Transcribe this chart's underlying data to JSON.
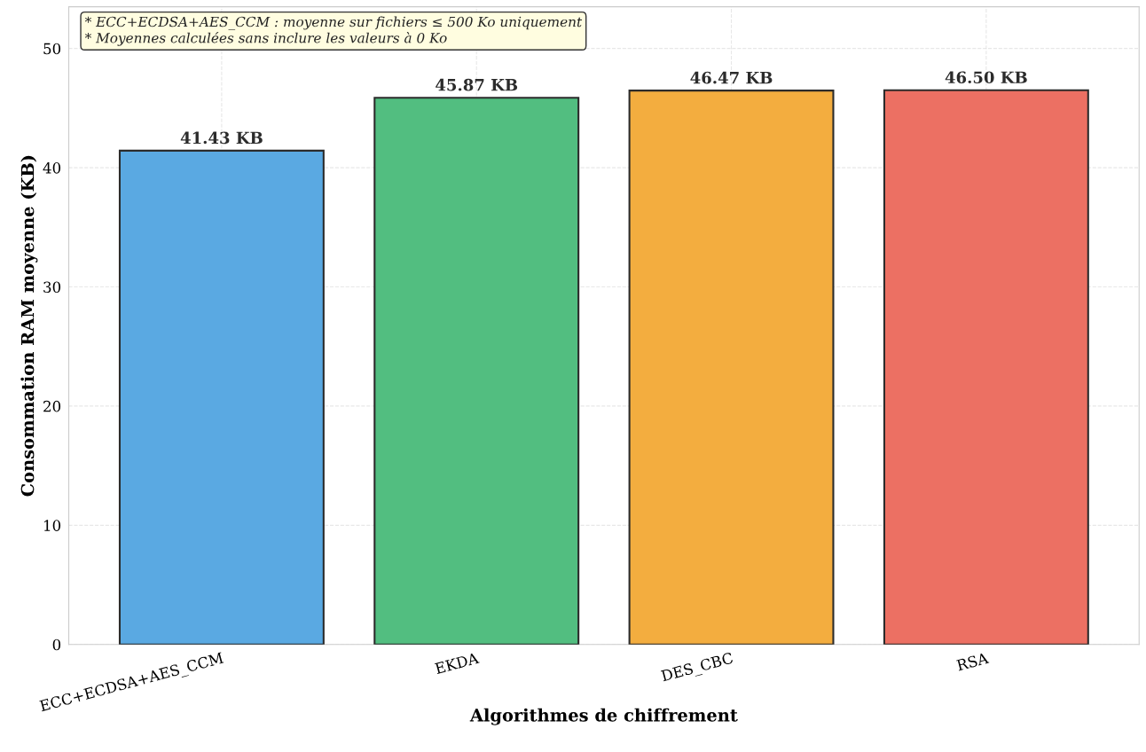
{
  "chart_data": {
    "type": "bar",
    "xlabel": "Algorithmes de chiffrement",
    "ylabel": "Consommation RAM moyenne (KB)",
    "categories": [
      "ECC+ECDSA+AES_CCM",
      "EKDA",
      "DES_CBC",
      "RSA"
    ],
    "values": [
      41.43,
      45.87,
      46.47,
      46.5
    ],
    "value_labels": [
      "41.43 KB",
      "45.87 KB",
      "46.47 KB",
      "46.50 KB"
    ],
    "colors": [
      "#5aa9e2",
      "#52be80",
      "#f3ad3f",
      "#ec7063"
    ],
    "ylim": [
      0,
      53.5
    ],
    "yticks": [
      0,
      10,
      20,
      30,
      40,
      50
    ],
    "grid": true,
    "annotations": [
      "* ECC+ECDSA+AES_CCM : moyenne sur fichiers ≤ 500 Ko uniquement\n* Moyennes calculées sans inclure les valeurs à 0 Ko"
    ]
  }
}
